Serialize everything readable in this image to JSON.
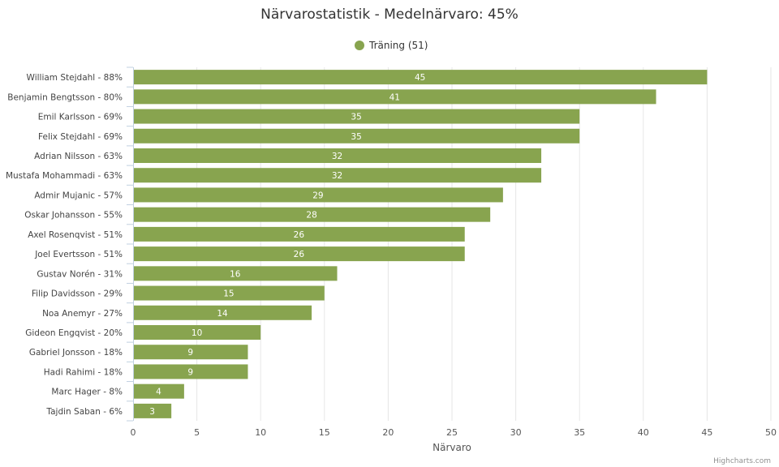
{
  "chart_data": {
    "type": "bar",
    "orientation": "horizontal",
    "title": "Närvarostatistik - Medelnärvaro: 45%",
    "xlabel": "Närvaro",
    "ylabel": "",
    "xlim": [
      0,
      50
    ],
    "x_ticks": [
      "0",
      "5",
      "10",
      "15",
      "20",
      "25",
      "30",
      "35",
      "40",
      "45",
      "50"
    ],
    "grid": true,
    "legend_position": "top-center",
    "categories": [
      "William Stejdahl - 88%",
      "Benjamin Bengtsson - 80%",
      "Emil Karlsson - 69%",
      "Felix Stejdahl - 69%",
      "Adrian Nilsson - 63%",
      "Mustafa Mohammadi - 63%",
      "Admir Mujanic - 57%",
      "Oskar Johansson - 55%",
      "Axel Rosenqvist - 51%",
      "Joel Evertsson - 51%",
      "Gustav Norén - 31%",
      "Filip Davidsson - 29%",
      "Noa Anemyr - 27%",
      "Gideon Engqvist - 20%",
      "Gabriel Jonsson - 18%",
      "Hadi Rahimi - 18%",
      "Marc Hager - 8%",
      "Tajdin Saban - 6%"
    ],
    "series": [
      {
        "name": "Träning (51)",
        "color": "#88a44f",
        "values": [
          45,
          41,
          35,
          35,
          32,
          32,
          29,
          28,
          26,
          26,
          16,
          15,
          14,
          10,
          9,
          9,
          4,
          3
        ]
      }
    ],
    "credits": "Highcharts.com"
  }
}
